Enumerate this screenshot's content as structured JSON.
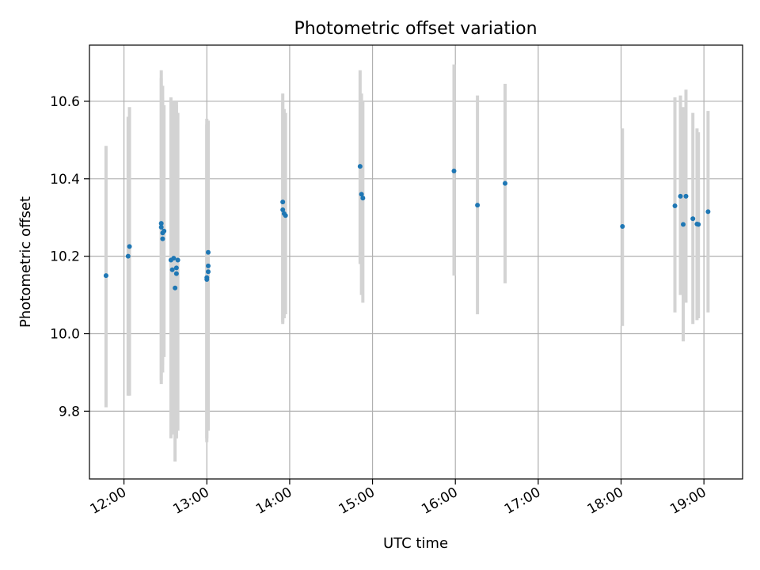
{
  "chart_data": {
    "type": "scatter",
    "title": "Photometric offset variation",
    "xlabel": "UTC time",
    "ylabel": "Photometric offset",
    "xlim": [
      "11:35",
      "19:28"
    ],
    "ylim": [
      9.625,
      10.745
    ],
    "x_ticks": [
      "12:00",
      "13:00",
      "14:00",
      "15:00",
      "16:00",
      "17:00",
      "18:00",
      "19:00"
    ],
    "y_ticks": [
      9.8,
      10.0,
      10.2,
      10.4,
      10.6
    ],
    "grid": true,
    "marker_color": "#1f77b4",
    "errorbar_color": "#d3d3d3",
    "points": [
      {
        "x": "11:47",
        "y": 10.15,
        "ylow": 9.81,
        "yhigh": 10.485
      },
      {
        "x": "12:03",
        "y": 10.2,
        "ylow": 9.84,
        "yhigh": 10.56
      },
      {
        "x": "12:04",
        "y": 10.225,
        "ylow": 9.84,
        "yhigh": 10.585
      },
      {
        "x": "12:27",
        "y": 10.285,
        "ylow": 9.87,
        "yhigh": 10.68
      },
      {
        "x": "12:27",
        "y": 10.275,
        "ylow": 9.88,
        "yhigh": 10.66
      },
      {
        "x": "12:28",
        "y": 10.26,
        "ylow": 9.9,
        "yhigh": 10.64
      },
      {
        "x": "12:28",
        "y": 10.245,
        "ylow": 9.92,
        "yhigh": 10.61
      },
      {
        "x": "12:29",
        "y": 10.265,
        "ylow": 9.94,
        "yhigh": 10.59
      },
      {
        "x": "12:34",
        "y": 10.19,
        "ylow": 9.73,
        "yhigh": 10.61
      },
      {
        "x": "12:35",
        "y": 10.165,
        "ylow": 9.74,
        "yhigh": 10.59
      },
      {
        "x": "12:36",
        "y": 10.195,
        "ylow": 9.75,
        "yhigh": 10.6
      },
      {
        "x": "12:37",
        "y": 10.118,
        "ylow": 9.67,
        "yhigh": 10.58
      },
      {
        "x": "12:38",
        "y": 10.17,
        "ylow": 9.73,
        "yhigh": 10.6
      },
      {
        "x": "12:38",
        "y": 10.155,
        "ylow": 9.73,
        "yhigh": 10.59
      },
      {
        "x": "12:39",
        "y": 10.19,
        "ylow": 9.75,
        "yhigh": 10.57
      },
      {
        "x": "13:00",
        "y": 10.14,
        "ylow": 9.72,
        "yhigh": 10.555
      },
      {
        "x": "13:00",
        "y": 10.145,
        "ylow": 9.73,
        "yhigh": 10.54
      },
      {
        "x": "13:01",
        "y": 10.16,
        "ylow": 9.75,
        "yhigh": 10.53
      },
      {
        "x": "13:01",
        "y": 10.175,
        "ylow": 9.77,
        "yhigh": 10.52
      },
      {
        "x": "13:01",
        "y": 10.21,
        "ylow": 9.8,
        "yhigh": 10.55
      },
      {
        "x": "13:55",
        "y": 10.34,
        "ylow": 10.025,
        "yhigh": 10.62
      },
      {
        "x": "13:55",
        "y": 10.32,
        "ylow": 10.03,
        "yhigh": 10.6
      },
      {
        "x": "13:56",
        "y": 10.31,
        "ylow": 10.04,
        "yhigh": 10.58
      },
      {
        "x": "13:57",
        "y": 10.305,
        "ylow": 10.05,
        "yhigh": 10.57
      },
      {
        "x": "14:51",
        "y": 10.432,
        "ylow": 10.18,
        "yhigh": 10.68
      },
      {
        "x": "14:52",
        "y": 10.36,
        "ylow": 10.1,
        "yhigh": 10.62
      },
      {
        "x": "14:53",
        "y": 10.35,
        "ylow": 10.08,
        "yhigh": 10.6
      },
      {
        "x": "15:59",
        "y": 10.42,
        "ylow": 10.15,
        "yhigh": 10.695
      },
      {
        "x": "16:16",
        "y": 10.332,
        "ylow": 10.05,
        "yhigh": 10.615
      },
      {
        "x": "16:36",
        "y": 10.388,
        "ylow": 10.13,
        "yhigh": 10.645
      },
      {
        "x": "18:01",
        "y": 10.277,
        "ylow": 10.02,
        "yhigh": 10.53
      },
      {
        "x": "18:39",
        "y": 10.33,
        "ylow": 10.055,
        "yhigh": 10.61
      },
      {
        "x": "18:43",
        "y": 10.355,
        "ylow": 10.1,
        "yhigh": 10.615
      },
      {
        "x": "18:45",
        "y": 10.282,
        "ylow": 9.98,
        "yhigh": 10.585
      },
      {
        "x": "18:47",
        "y": 10.355,
        "ylow": 10.08,
        "yhigh": 10.63
      },
      {
        "x": "18:52",
        "y": 10.297,
        "ylow": 10.025,
        "yhigh": 10.57
      },
      {
        "x": "18:55",
        "y": 10.283,
        "ylow": 10.035,
        "yhigh": 10.53
      },
      {
        "x": "18:56",
        "y": 10.282,
        "ylow": 10.04,
        "yhigh": 10.52
      },
      {
        "x": "19:03",
        "y": 10.315,
        "ylow": 10.055,
        "yhigh": 10.575
      }
    ]
  }
}
